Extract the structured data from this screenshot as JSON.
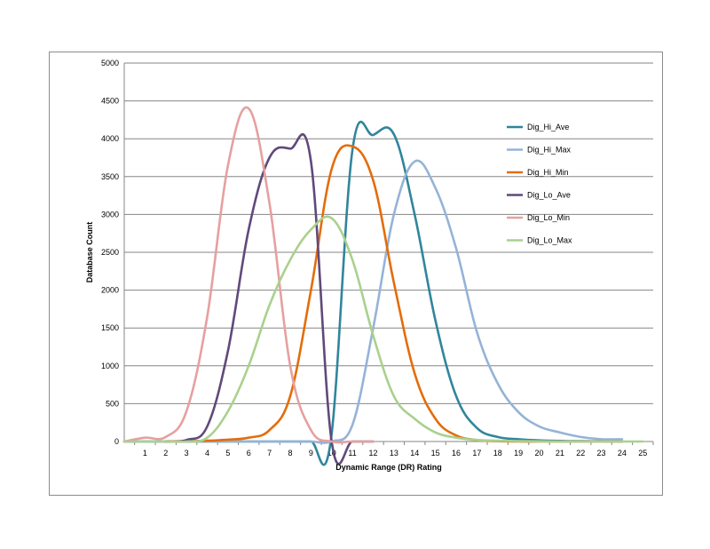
{
  "chart_data": {
    "type": "line",
    "title": "",
    "xlabel": "Dynamic Range (DR) Rating",
    "ylabel": "Database Count",
    "xlim": [
      0,
      25.5
    ],
    "ylim": [
      0,
      5000
    ],
    "yticks": [
      0,
      500,
      1000,
      1500,
      2000,
      2500,
      3000,
      3500,
      4000,
      4500,
      5000
    ],
    "xticks": [
      1,
      2,
      3,
      4,
      5,
      6,
      7,
      8,
      9,
      10,
      11,
      12,
      13,
      14,
      15,
      16,
      17,
      18,
      19,
      20,
      21,
      22,
      23,
      24,
      25
    ],
    "grid": "horizontal",
    "legend_position": "right",
    "series": [
      {
        "name": "Dig_Hi_Ave",
        "color": "#31859c",
        "x": [
          0,
          1,
          2,
          3,
          4,
          5,
          6,
          7,
          8,
          9,
          9.95,
          11,
          12,
          13,
          14,
          15,
          16,
          17,
          18,
          19,
          20,
          21,
          22,
          23,
          24
        ],
        "y": [
          0,
          0,
          0,
          0,
          0,
          0,
          0,
          0,
          0,
          0,
          0,
          3850,
          4050,
          4060,
          3000,
          1600,
          600,
          180,
          60,
          30,
          15,
          8,
          5,
          3,
          0
        ]
      },
      {
        "name": "Dig_Hi_Max",
        "color": "#95b3d7",
        "x": [
          0,
          1,
          2,
          3,
          4,
          5,
          6,
          7,
          8,
          9,
          10,
          11,
          12,
          13,
          14,
          15,
          16,
          17,
          18,
          19,
          20,
          21,
          22,
          23,
          24
        ],
        "y": [
          0,
          0,
          0,
          0,
          0,
          0,
          0,
          0,
          0,
          0,
          0,
          220,
          1500,
          3000,
          3700,
          3350,
          2550,
          1450,
          770,
          390,
          200,
          120,
          60,
          30,
          30
        ]
      },
      {
        "name": "Dig_Hi_Min",
        "color": "#e46c0a",
        "x": [
          2,
          3,
          4,
          5,
          6,
          7,
          8,
          9,
          10,
          11,
          12,
          13,
          14,
          15,
          16,
          17,
          18,
          19,
          20,
          21,
          22,
          23,
          24
        ],
        "y": [
          0,
          5,
          10,
          25,
          50,
          150,
          600,
          2000,
          3600,
          3900,
          3450,
          2100,
          900,
          300,
          80,
          20,
          5,
          0,
          0,
          0,
          0,
          0,
          0
        ]
      },
      {
        "name": "Dig_Lo_Ave",
        "color": "#60497a",
        "x": [
          2,
          3,
          4,
          5,
          6,
          7,
          8,
          9,
          10,
          11,
          12
        ],
        "y": [
          0,
          20,
          200,
          1200,
          2800,
          3750,
          3870,
          3700,
          0,
          0,
          0
        ]
      },
      {
        "name": "Dig_Lo_Min",
        "color": "#e6a0a0",
        "x": [
          0,
          1,
          2,
          3,
          4,
          5,
          6,
          7,
          8,
          9,
          10,
          11,
          12
        ],
        "y": [
          0,
          50,
          60,
          400,
          1650,
          3650,
          4400,
          3150,
          1000,
          150,
          0,
          0,
          0
        ]
      },
      {
        "name": "Dig_Lo_Max",
        "color": "#a9d18e",
        "x": [
          0,
          1,
          2,
          3,
          4,
          5,
          6,
          7,
          8,
          9,
          10,
          11,
          12,
          13,
          14,
          15,
          16,
          17,
          18,
          19,
          20,
          21,
          22,
          23,
          24,
          25
        ],
        "y": [
          0,
          0,
          0,
          0,
          50,
          400,
          1000,
          1800,
          2400,
          2800,
          2950,
          2400,
          1400,
          600,
          300,
          120,
          50,
          20,
          10,
          5,
          2,
          0,
          0,
          0,
          0,
          0
        ]
      }
    ]
  }
}
